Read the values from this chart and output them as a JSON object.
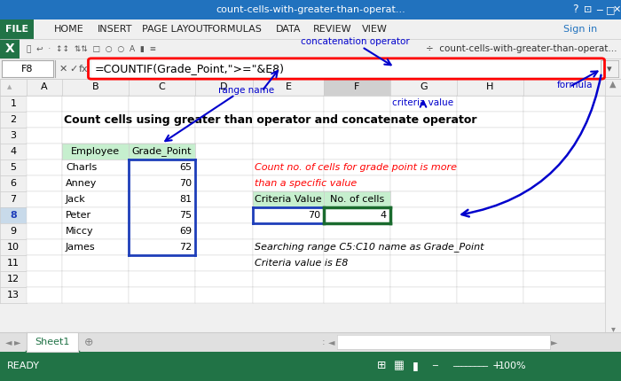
{
  "title": "Count cells using greater than operator and concatenate operator",
  "window_title": "count-cells-with-greater-than-operat...",
  "formula_bar_cell": "F8",
  "formula_bar_text": "=COUNTIF(Grade_Point,\">=\"&E8)",
  "sheet_tab": "Sheet1",
  "col_headers": [
    "A",
    "B",
    "C",
    "D",
    "E",
    "F",
    "G",
    "H"
  ],
  "row_headers": [
    "1",
    "2",
    "3",
    "4",
    "5",
    "6",
    "7",
    "8",
    "9",
    "10",
    "11",
    "12",
    "13"
  ],
  "employees": [
    "Charls",
    "Anney",
    "Jack",
    "Peter",
    "Miccy",
    "James"
  ],
  "grade_points": [
    65,
    70,
    81,
    75,
    69,
    72
  ],
  "criteria_value": "70",
  "no_of_cells": "4",
  "red_italic_text_line1": "Count no. of cells for grade point is more",
  "red_italic_text_line2": "than a specific value",
  "italic_text_line1": "Searching range C5:C10 name as Grade_Point",
  "italic_text_line2": "Criteria value is E8",
  "annotation_range_name": "range name",
  "annotation_concat": "concatenation operator",
  "annotation_criteria": "criteria value",
  "annotation_formula": "formula",
  "header_bg": "#c6efce",
  "selected_col_f_bg": "#d0d0d0",
  "file_tab_bg": "#217346",
  "title_bar_bg": "#2172be",
  "status_bar_bg": "#217346",
  "annotation_color": "#0000cc",
  "formula_border_color": "#ff0000",
  "blue_border": "#1e3eba",
  "dark_green_border": "#1a6b2e"
}
